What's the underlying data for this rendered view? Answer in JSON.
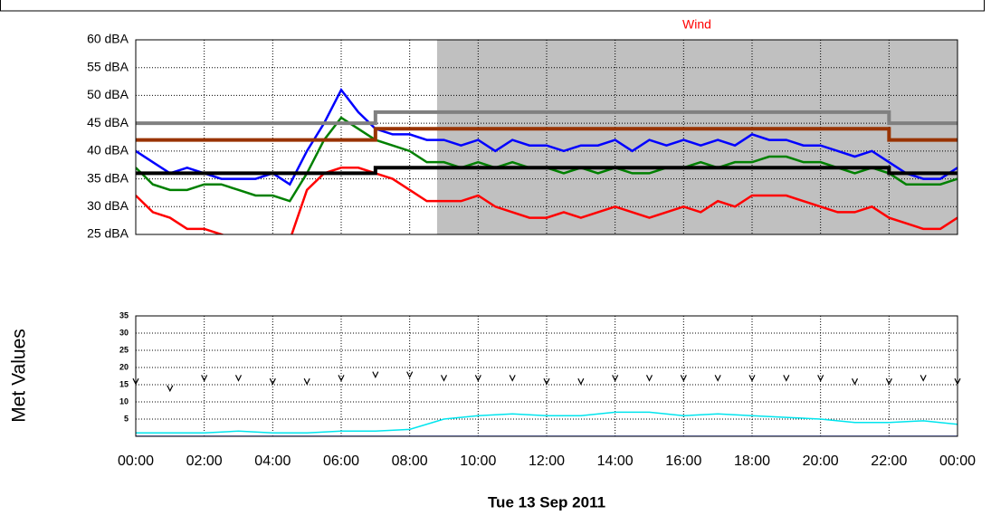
{
  "chart_data": [
    {
      "type": "line",
      "annotation": "Wind",
      "annotation_color": "#ff0000",
      "ylim": [
        25,
        60
      ],
      "yticks": [
        {
          "value": 25,
          "label": "25 dBA"
        },
        {
          "value": 30,
          "label": "30 dBA"
        },
        {
          "value": 35,
          "label": "35 dBA"
        },
        {
          "value": 40,
          "label": "40 dBA"
        },
        {
          "value": 45,
          "label": "45 dBA"
        },
        {
          "value": 50,
          "label": "50 dBA"
        },
        {
          "value": 55,
          "label": "55 dBA"
        },
        {
          "value": 60,
          "label": "60 dBA"
        }
      ],
      "xlim": [
        0,
        24
      ],
      "xticks": [
        0,
        2,
        4,
        6,
        8,
        10,
        12,
        14,
        16,
        18,
        20,
        22,
        24
      ],
      "grid": true,
      "shade": [
        8.8,
        24
      ],
      "shade_color": "#c0c0c0",
      "x": [
        0,
        0.5,
        1,
        1.5,
        2,
        2.5,
        3,
        3.5,
        4,
        4.5,
        5,
        5.5,
        6,
        6.5,
        7,
        7.5,
        8,
        8.5,
        9,
        9.5,
        10,
        10.5,
        11,
        11.5,
        12,
        12.5,
        13,
        13.5,
        14,
        14.5,
        15,
        15.5,
        16,
        16.5,
        17,
        17.5,
        18,
        18.5,
        19,
        19.5,
        20,
        20.5,
        21,
        21.5,
        22,
        22.5,
        23,
        23.5,
        24
      ],
      "series": [
        {
          "color": "#0000ff",
          "values": [
            40,
            38,
            36,
            37,
            36,
            35,
            35,
            35,
            36,
            34,
            40,
            45,
            51,
            47,
            44,
            43,
            43,
            42,
            42,
            41,
            42,
            40,
            42,
            41,
            41,
            40,
            41,
            41,
            42,
            40,
            42,
            41,
            42,
            41,
            42,
            41,
            43,
            42,
            42,
            41,
            41,
            40,
            39,
            40,
            38,
            36,
            35,
            35,
            37
          ]
        },
        {
          "color": "#008000",
          "values": [
            37,
            34,
            33,
            33,
            34,
            34,
            33,
            32,
            32,
            31,
            36,
            42,
            46,
            44,
            42,
            41,
            40,
            38,
            38,
            37,
            38,
            37,
            38,
            37,
            37,
            36,
            37,
            36,
            37,
            36,
            36,
            37,
            37,
            38,
            37,
            38,
            38,
            39,
            39,
            38,
            38,
            37,
            36,
            37,
            36,
            34,
            34,
            34,
            35
          ]
        },
        {
          "color": "#ff0000",
          "values": [
            32,
            29,
            28,
            26,
            26,
            25,
            24,
            24,
            24,
            24,
            33,
            36,
            37,
            37,
            36,
            35,
            33,
            31,
            31,
            31,
            32,
            30,
            29,
            28,
            28,
            29,
            28,
            29,
            30,
            29,
            28,
            29,
            30,
            29,
            31,
            30,
            32,
            32,
            32,
            31,
            30,
            29,
            29,
            30,
            28,
            27,
            26,
            26,
            28
          ]
        },
        {
          "color": "#808080",
          "step": true,
          "x": [
            0,
            7,
            7,
            22,
            22,
            24
          ],
          "values": [
            45,
            45,
            47,
            47,
            45,
            45
          ]
        },
        {
          "color": "#993300",
          "step": true,
          "x": [
            0,
            7,
            7,
            22,
            22,
            24
          ],
          "values": [
            42,
            42,
            44,
            44,
            42,
            42
          ]
        },
        {
          "color": "#000000",
          "step": true,
          "x": [
            0,
            7,
            7,
            22,
            22,
            24
          ],
          "values": [
            36,
            36,
            37,
            37,
            36,
            36
          ]
        }
      ]
    },
    {
      "type": "line",
      "ylabel": "Met Values",
      "xlabel": "Tue 13 Sep 2011",
      "ylim": [
        0,
        35
      ],
      "yticks": [
        5,
        10,
        15,
        20,
        25,
        30,
        35
      ],
      "xlim": [
        0,
        24
      ],
      "xticks": [
        {
          "value": 0,
          "label": "00:00"
        },
        {
          "value": 2,
          "label": "02:00"
        },
        {
          "value": 4,
          "label": "04:00"
        },
        {
          "value": 6,
          "label": "06:00"
        },
        {
          "value": 8,
          "label": "08:00"
        },
        {
          "value": 10,
          "label": "10:00"
        },
        {
          "value": 12,
          "label": "12:00"
        },
        {
          "value": 14,
          "label": "14:00"
        },
        {
          "value": 16,
          "label": "16:00"
        },
        {
          "value": 18,
          "label": "18:00"
        },
        {
          "value": 20,
          "label": "20:00"
        },
        {
          "value": 22,
          "label": "22:00"
        },
        {
          "value": 24,
          "label": "00:00"
        }
      ],
      "grid": true,
      "x": [
        0,
        1,
        2,
        3,
        4,
        5,
        6,
        7,
        8,
        9,
        10,
        11,
        12,
        13,
        14,
        15,
        16,
        17,
        18,
        19,
        20,
        21,
        22,
        23,
        24
      ],
      "series": [
        {
          "color": "#000000",
          "markers": true,
          "values": [
            16,
            14,
            17,
            17,
            16,
            16,
            17,
            18,
            18,
            17,
            17,
            17,
            16,
            16,
            17,
            17,
            17,
            17,
            17,
            17,
            17,
            16,
            16,
            17,
            16
          ]
        },
        {
          "color": "#00e5ee",
          "values": [
            1,
            1,
            1,
            1.5,
            1,
            1,
            1.5,
            1.5,
            2,
            5,
            6,
            6.5,
            6,
            6,
            7,
            7,
            6,
            6.5,
            6,
            5.5,
            5,
            4,
            4,
            4.5,
            3.5
          ]
        },
        {
          "color": "#3355ff",
          "values": [
            0,
            0,
            0,
            0,
            0,
            0,
            0,
            0,
            0,
            0,
            0,
            0,
            0,
            0,
            0,
            0,
            0,
            0,
            0,
            0,
            0,
            0,
            0,
            0,
            0
          ]
        }
      ]
    }
  ]
}
